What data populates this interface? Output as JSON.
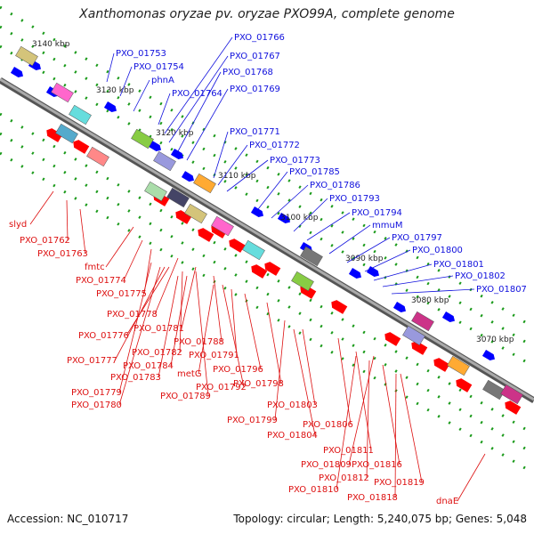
{
  "title": "Xanthomonas oryzae pv. oryzae PXO99A, complete genome",
  "accession": "Accession: NC_010717",
  "topology": "Topology: circular; Length: 5,240,075 bp; Genes: 5,048",
  "colors": {
    "forward_gene": "#0000ff",
    "reverse_gene": "#ff0000",
    "forward_label": "#1010dd",
    "reverse_label": "#dd1010",
    "backbone": "#888888",
    "tick_dots": "#1a9a1a"
  },
  "ticks": [
    "3140 kbp",
    "3130 kbp",
    "3120 kbp",
    "3110 kbp",
    "3100 kbp",
    "3090 kbp",
    "3080 kbp",
    "3070 kbp"
  ],
  "forward_labels": [
    "PXO_01753",
    "PXO_01754",
    "phnA",
    "PXO_01764",
    "PXO_01766",
    "PXO_01767",
    "PXO_01768",
    "PXO_01769",
    "PXO_01771",
    "PXO_01772",
    "PXO_01773",
    "PXO_01785",
    "PXO_01786",
    "PXO_01793",
    "PXO_01794",
    "mmuM",
    "PXO_01797",
    "PXO_01800",
    "PXO_01801",
    "PXO_01802",
    "PXO_01807"
  ],
  "reverse_labels": [
    "slyd",
    "PXO_01762",
    "PXO_01763",
    "fmtc",
    "PXO_01774",
    "PXO_01775",
    "PXO_01778",
    "PXO_01776",
    "PXO_01781",
    "PXO_01788",
    "PXO_01777",
    "PXO_01782",
    "PXO_01784",
    "PXO_01783",
    "metG",
    "PXO_01791",
    "PXO_01796",
    "PXO_01779",
    "PXO_01789",
    "PXO_01792",
    "PXO_01798",
    "PXO_01780",
    "PXO_01803",
    "PXO_01799",
    "PXO_01806",
    "PXO_01804",
    "PXO_01811",
    "PXO_01809",
    "PXO_01816",
    "PXO_01812",
    "PXO_01819",
    "PXO_01810",
    "PXO_01818",
    "dnaE"
  ]
}
